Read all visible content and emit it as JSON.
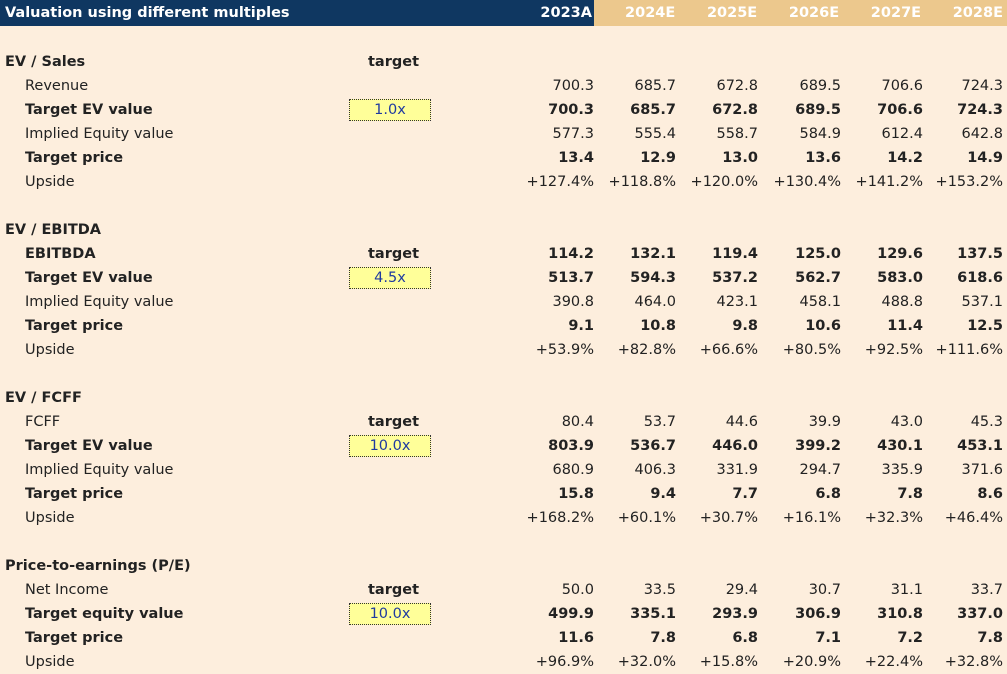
{
  "header": {
    "title": "Valuation using different multiples",
    "years": [
      "2023A",
      "2024E",
      "2025E",
      "2026E",
      "2027E",
      "2028E"
    ]
  },
  "sections": [
    {
      "title": "EV / Sales",
      "target_label": "target",
      "multiple": "1.0x",
      "rows": [
        {
          "label": "Revenue",
          "values": [
            "700.3",
            "685.7",
            "672.8",
            "689.5",
            "706.6",
            "724.3"
          ]
        },
        {
          "label": "Target EV value",
          "values": [
            "700.3",
            "685.7",
            "672.8",
            "689.5",
            "706.6",
            "724.3"
          ]
        },
        {
          "label": "Implied Equity value",
          "values": [
            "577.3",
            "555.4",
            "558.7",
            "584.9",
            "612.4",
            "642.8"
          ]
        },
        {
          "label": "Target price",
          "values": [
            "13.4",
            "12.9",
            "13.0",
            "13.6",
            "14.2",
            "14.9"
          ]
        },
        {
          "label": "Upside",
          "values": [
            "+127.4%",
            "+118.8%",
            "+120.0%",
            "+130.4%",
            "+141.2%",
            "+153.2%"
          ]
        }
      ]
    },
    {
      "title": "EV / EBITDA",
      "target_label": "target",
      "multiple": "4.5x",
      "rows": [
        {
          "label": "EBITBDA",
          "values": [
            "114.2",
            "132.1",
            "119.4",
            "125.0",
            "129.6",
            "137.5"
          ]
        },
        {
          "label": "Target EV value",
          "values": [
            "513.7",
            "594.3",
            "537.2",
            "562.7",
            "583.0",
            "618.6"
          ]
        },
        {
          "label": "Implied Equity value",
          "values": [
            "390.8",
            "464.0",
            "423.1",
            "458.1",
            "488.8",
            "537.1"
          ]
        },
        {
          "label": "Target price",
          "values": [
            "9.1",
            "10.8",
            "9.8",
            "10.6",
            "11.4",
            "12.5"
          ]
        },
        {
          "label": "Upside",
          "values": [
            "+53.9%",
            "+82.8%",
            "+66.6%",
            "+80.5%",
            "+92.5%",
            "+111.6%"
          ]
        }
      ]
    },
    {
      "title": "EV / FCFF",
      "target_label": "target",
      "multiple": "10.0x",
      "rows": [
        {
          "label": "FCFF",
          "values": [
            "80.4",
            "53.7",
            "44.6",
            "39.9",
            "43.0",
            "45.3"
          ]
        },
        {
          "label": "Target EV value",
          "values": [
            "803.9",
            "536.7",
            "446.0",
            "399.2",
            "430.1",
            "453.1"
          ]
        },
        {
          "label": "Implied Equity value",
          "values": [
            "680.9",
            "406.3",
            "331.9",
            "294.7",
            "335.9",
            "371.6"
          ]
        },
        {
          "label": "Target price",
          "values": [
            "15.8",
            "9.4",
            "7.7",
            "6.8",
            "7.8",
            "8.6"
          ]
        },
        {
          "label": "Upside",
          "values": [
            "+168.2%",
            "+60.1%",
            "+30.7%",
            "+16.1%",
            "+32.3%",
            "+46.4%"
          ]
        }
      ]
    },
    {
      "title": "Price-to-earnings (P/E)",
      "target_label": "target",
      "multiple": "10.0x",
      "rows": [
        {
          "label": "Net Income",
          "values": [
            "50.0",
            "33.5",
            "29.4",
            "30.7",
            "31.1",
            "33.7"
          ]
        },
        {
          "label": "Target equity value",
          "values": [
            "499.9",
            "335.1",
            "293.9",
            "306.9",
            "310.8",
            "337.0"
          ]
        },
        {
          "label": "Target price",
          "values": [
            "11.6",
            "7.8",
            "6.8",
            "7.1",
            "7.2",
            "7.8"
          ]
        },
        {
          "label": "Upside",
          "values": [
            "+96.9%",
            "+32.0%",
            "+15.8%",
            "+20.9%",
            "+22.4%",
            "+32.8%"
          ]
        }
      ]
    }
  ]
}
